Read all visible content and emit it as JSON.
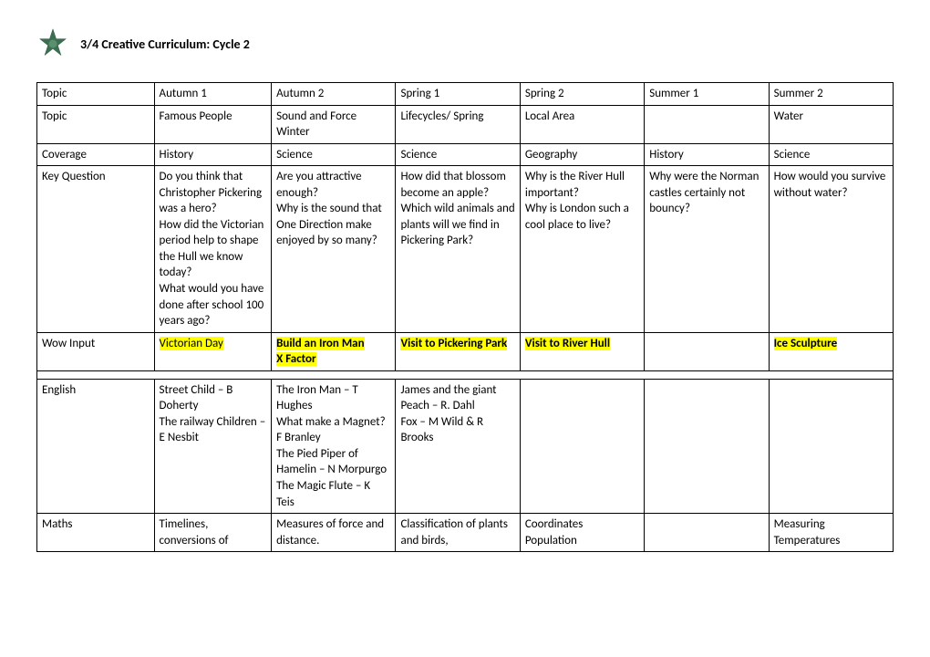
{
  "header": {
    "title": "3/4  Creative Curriculum: Cycle 2"
  },
  "table": {
    "col_widths": [
      "115px",
      "115px",
      "122px",
      "122px",
      "122px",
      "122px",
      "122px"
    ],
    "rows": [
      {
        "cells": [
          {
            "text": "Topic"
          },
          {
            "text": "Autumn 1"
          },
          {
            "text": "Autumn 2"
          },
          {
            "text": "Spring 1"
          },
          {
            "text": "Spring 2"
          },
          {
            "text": "Summer 1"
          },
          {
            "text": "Summer 2"
          }
        ]
      },
      {
        "cells": [
          {
            "text": "Topic"
          },
          {
            "text": "Famous People"
          },
          {
            "text": "Sound and Force\nWinter"
          },
          {
            "text": "Lifecycles/ Spring"
          },
          {
            "text": "Local Area"
          },
          {
            "text": ""
          },
          {
            "text": "Water"
          }
        ]
      },
      {
        "cells": [
          {
            "text": "Coverage"
          },
          {
            "text": "History"
          },
          {
            "text": "Science"
          },
          {
            "text": "Science"
          },
          {
            "text": "Geography"
          },
          {
            "text": "History"
          },
          {
            "text": "Science"
          }
        ]
      },
      {
        "cells": [
          {
            "text": "Key Question"
          },
          {
            "text": "Do you think that Christopher Pickering was a hero?\nHow did the Victorian period help to shape the Hull we know today?\nWhat would you have done after school 100 years ago?\n "
          },
          {
            "text": "Are you attractive enough?\nWhy is the sound that One Direction make enjoyed by so many?"
          },
          {
            "text": "How did that blossom become an apple?\nWhich wild animals and plants will we find in Pickering Park?"
          },
          {
            "text": "Why is the River Hull important?\nWhy is London such a cool place to live?"
          },
          {
            "text": "Why were the Norman castles certainly not bouncy?"
          },
          {
            "text": "How would you survive without water?"
          }
        ]
      },
      {
        "cells": [
          {
            "text": "Wow Input"
          },
          {
            "text": "Victorian Day",
            "hl": true
          },
          {
            "text": "Build an Iron Man\nX Factor",
            "hl": true,
            "bold": true
          },
          {
            "text": "Visit to Pickering Park",
            "hl": true,
            "bold": true
          },
          {
            "text": "Visit to River Hull",
            "hl": true,
            "bold": true
          },
          {
            "text": ""
          },
          {
            "text": "Ice Sculpture",
            "hl": true,
            "bold": true
          }
        ]
      },
      {
        "divider": true
      },
      {
        "cells": [
          {
            "text": "English"
          },
          {
            "text": "Street Child – B Doherty\nThe railway Children – E Nesbit"
          },
          {
            "text": "The Iron Man – T Hughes\nWhat make a Magnet? F Branley\nThe Pied Piper of Hamelin – N Morpurgo\nThe Magic Flute – K Teis"
          },
          {
            "text": "James and the giant Peach – R. Dahl\nFox – M Wild & R Brooks"
          },
          {
            "text": ""
          },
          {
            "text": ""
          },
          {
            "text": ""
          }
        ]
      },
      {
        "cells": [
          {
            "text": "Maths"
          },
          {
            "text": "Timelines, conversions of"
          },
          {
            "text": "Measures of force and distance."
          },
          {
            "text": "Classification of plants and birds,"
          },
          {
            "text": "Coordinates\nPopulation"
          },
          {
            "text": ""
          },
          {
            "text": "Measuring Temperatures"
          }
        ]
      }
    ]
  },
  "colors": {
    "highlight": "#ffff00",
    "border": "#000000",
    "text": "#000000",
    "background": "#ffffff"
  },
  "logo": {
    "color": "#3a7050"
  }
}
